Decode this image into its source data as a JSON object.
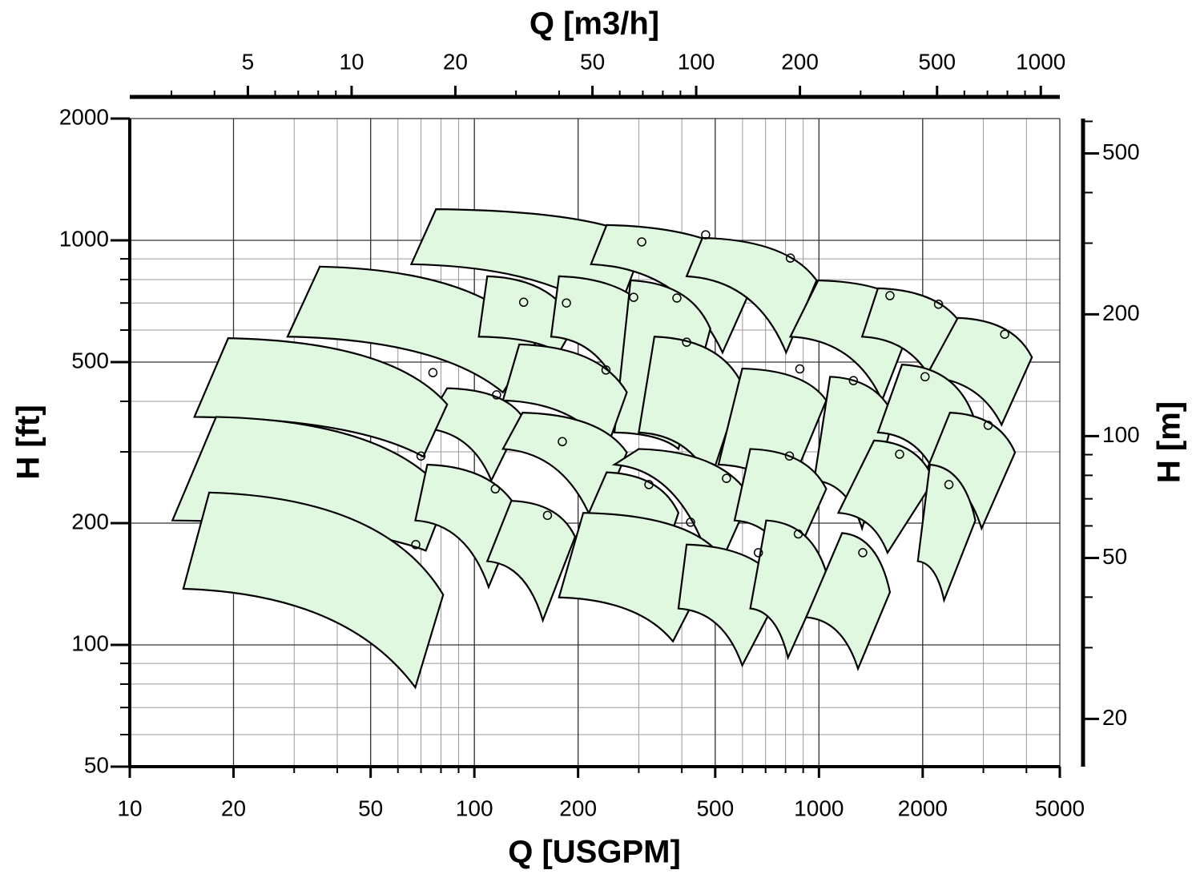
{
  "chart_data": {
    "type": "coverage",
    "x_title": "Q [USGPM]",
    "x2_title": "Q [m3/h]",
    "y_title": "H [ft]",
    "y2_title": "H [m]",
    "log_scale": true,
    "grid": true,
    "color": "#e0f7e0",
    "xlim": [
      10,
      5000
    ],
    "xticks": [
      10,
      20,
      50,
      100,
      200,
      500,
      1000,
      2000,
      5000
    ],
    "x2lim": [
      2.271,
      1135.6
    ],
    "x2ticks": [
      5,
      10,
      20,
      50,
      100,
      200,
      500,
      1000
    ],
    "ylim": [
      50,
      2000
    ],
    "yticks": [
      50,
      100,
      200,
      500,
      1000,
      2000
    ],
    "y2lim": [
      15.24,
      609.6
    ],
    "y2ticks": [
      20,
      50,
      100,
      200,
      500
    ],
    "tiles": [
      {
        "corners": [
          [
            77.4,
            1194
          ],
          [
            313,
            1000
          ],
          [
            255,
            628
          ],
          [
            65.6,
            873
          ]
        ],
        "bep": [
          306,
          991
        ]
      },
      {
        "corners": [
          [
            242,
            1091
          ],
          [
            667,
            833
          ],
          [
            525,
            528
          ],
          [
            218,
            873
          ]
        ],
        "bep": [
          469,
          1032
        ]
      },
      {
        "corners": [
          [
            459,
            1014
          ],
          [
            984,
            796
          ],
          [
            803,
            528
          ],
          [
            413,
            815
          ]
        ],
        "bep": [
          826,
          904
        ]
      },
      {
        "corners": [
          [
            995,
            796
          ],
          [
            1915,
            664
          ],
          [
            1524,
            402
          ],
          [
            826,
            578
          ]
        ],
        "bep": [
          1607,
          730
        ]
      },
      {
        "corners": [
          [
            1483,
            761
          ],
          [
            2636,
            605
          ],
          [
            2153,
            440
          ],
          [
            1334,
            578
          ]
        ],
        "bep": [
          2223,
          695
        ]
      },
      {
        "corners": [
          [
            2529,
            643
          ],
          [
            4150,
            514
          ],
          [
            3388,
            350
          ],
          [
            2042,
            460
          ]
        ],
        "bep": [
          3459,
          586
        ]
      },
      {
        "corners": [
          [
            35.6,
            861
          ],
          [
            152,
            565
          ],
          [
            121,
            421
          ],
          [
            28.7,
            578
          ]
        ],
        "bep": [
          139,
          703
        ]
      },
      {
        "corners": [
          [
            109,
            815
          ],
          [
            196,
            619
          ],
          [
            176,
            528
          ],
          [
            103,
            578
          ]
        ],
        "bep": [
          185,
          700
        ]
      },
      {
        "corners": [
          [
            176,
            815
          ],
          [
            343,
            619
          ],
          [
            270,
            402
          ],
          [
            167,
            578
          ]
        ],
        "bep": [
          290,
          723
        ]
      },
      {
        "corners": [
          [
            284,
            796
          ],
          [
            484,
            605
          ],
          [
            391,
            305
          ],
          [
            255,
            335
          ]
        ],
        "bep": [
          387,
          720
        ]
      },
      {
        "corners": [
          [
            333,
            578
          ],
          [
            599,
            440
          ],
          [
            484,
            255
          ],
          [
            300,
            335
          ]
        ],
        "bep": [
          413,
          560
        ]
      },
      {
        "corners": [
          [
            135,
            553
          ],
          [
            277,
            421
          ],
          [
            242,
            305
          ],
          [
            121,
            402
          ]
        ],
        "bep": [
          241,
          478
        ]
      },
      {
        "corners": [
          [
            83.4,
            431
          ],
          [
            138,
            366
          ],
          [
            112,
            255
          ],
          [
            71.1,
            343
          ]
        ],
        "bep": [
          116,
          415
        ]
      },
      {
        "corners": [
          [
            138,
            375
          ],
          [
            277,
            299
          ],
          [
            224,
            194
          ],
          [
            121,
            305
          ]
        ],
        "bep": [
          180,
          318
        ]
      },
      {
        "corners": [
          [
            599,
            482
          ],
          [
            1050,
            402
          ],
          [
            803,
            232
          ],
          [
            511,
            279
          ]
        ],
        "bep": [
          880,
          481
        ]
      },
      {
        "corners": [
          [
            1077,
            460
          ],
          [
            1651,
            366
          ],
          [
            1334,
            194
          ],
          [
            968,
            255
          ]
        ],
        "bep": [
          1259,
          450
        ]
      },
      {
        "corners": [
          [
            1742,
            493
          ],
          [
            2812,
            366
          ],
          [
            2213,
            255
          ],
          [
            1483,
            335
          ]
        ],
        "bep": [
          2032,
          460
        ]
      },
      {
        "corners": [
          [
            2399,
            375
          ],
          [
            3707,
            299
          ],
          [
            2965,
            194
          ],
          [
            2042,
            267
          ]
        ],
        "bep": [
          3097,
          349
        ]
      },
      {
        "corners": [
          [
            19.3,
            573
          ],
          [
            83.4,
            393
          ],
          [
            71.1,
            292
          ],
          [
            15.4,
            366
          ]
        ],
        "bep": [
          75.8,
          471
        ]
      },
      {
        "corners": [
          [
            17.8,
            366
          ],
          [
            83.4,
            234
          ],
          [
            72.3,
            171
          ],
          [
            13.3,
            203
          ]
        ],
        "bep": [
          70,
          293
        ]
      },
      {
        "corners": [
          [
            73,
            279
          ],
          [
            135,
            212
          ],
          [
            110,
            139
          ],
          [
            67.4,
            203
          ]
        ],
        "bep": [
          115,
          243
        ]
      },
      {
        "corners": [
          [
            128,
            227
          ],
          [
            196,
            185
          ],
          [
            158,
            115
          ],
          [
            109,
            161
          ]
        ],
        "bep": [
          163,
          209
        ]
      },
      {
        "corners": [
          [
            300,
            305
          ],
          [
            632,
            232
          ],
          [
            497,
            147
          ],
          [
            255,
            279
          ]
        ],
        "bep": [
          539,
          258
        ]
      },
      {
        "corners": [
          [
            242,
            267
          ],
          [
            391,
            212
          ],
          [
            316,
            123
          ],
          [
            196,
            177
          ]
        ],
        "bep": [
          321,
          249
        ]
      },
      {
        "corners": [
          [
            632,
            305
          ],
          [
            1050,
            243
          ],
          [
            826,
            154
          ],
          [
            569,
            203
          ]
        ],
        "bep": [
          821,
          293
        ]
      },
      {
        "corners": [
          [
            1445,
            320
          ],
          [
            2153,
            255
          ],
          [
            1581,
            169
          ],
          [
            1138,
            212
          ]
        ],
        "bep": [
          1714,
          296
        ]
      },
      {
        "corners": [
          [
            2099,
            279
          ],
          [
            2844,
            203
          ],
          [
            2307,
            129
          ],
          [
            1936,
            161
          ]
        ],
        "bep": [
          2383,
          249
        ]
      },
      {
        "corners": [
          [
            207,
            212
          ],
          [
            511,
            169
          ],
          [
            377,
            102
          ],
          [
            176,
            131
          ]
        ],
        "bep": [
          424,
          201
        ]
      },
      {
        "corners": [
          [
            413,
            177
          ],
          [
            783,
            138
          ],
          [
            599,
            89
          ],
          [
            391,
            123
          ]
        ],
        "bep": [
          667,
          169
        ]
      },
      {
        "corners": [
          [
            703,
            203
          ],
          [
            1050,
            151
          ],
          [
            813,
            93
          ],
          [
            632,
            123
          ]
        ],
        "bep": [
          871,
          188
        ]
      },
      {
        "corners": [
          [
            1167,
            189
          ],
          [
            1607,
            135
          ],
          [
            1298,
            87.3
          ],
          [
            918,
            117
          ]
        ],
        "bep": [
          1340,
          169
        ]
      },
      {
        "corners": [
          [
            17,
            238
          ],
          [
            81.2,
            133
          ],
          [
            67.4,
            78.5
          ],
          [
            14.3,
            137.6
          ]
        ],
        "bep": [
          67.6,
          177
        ]
      }
    ]
  }
}
